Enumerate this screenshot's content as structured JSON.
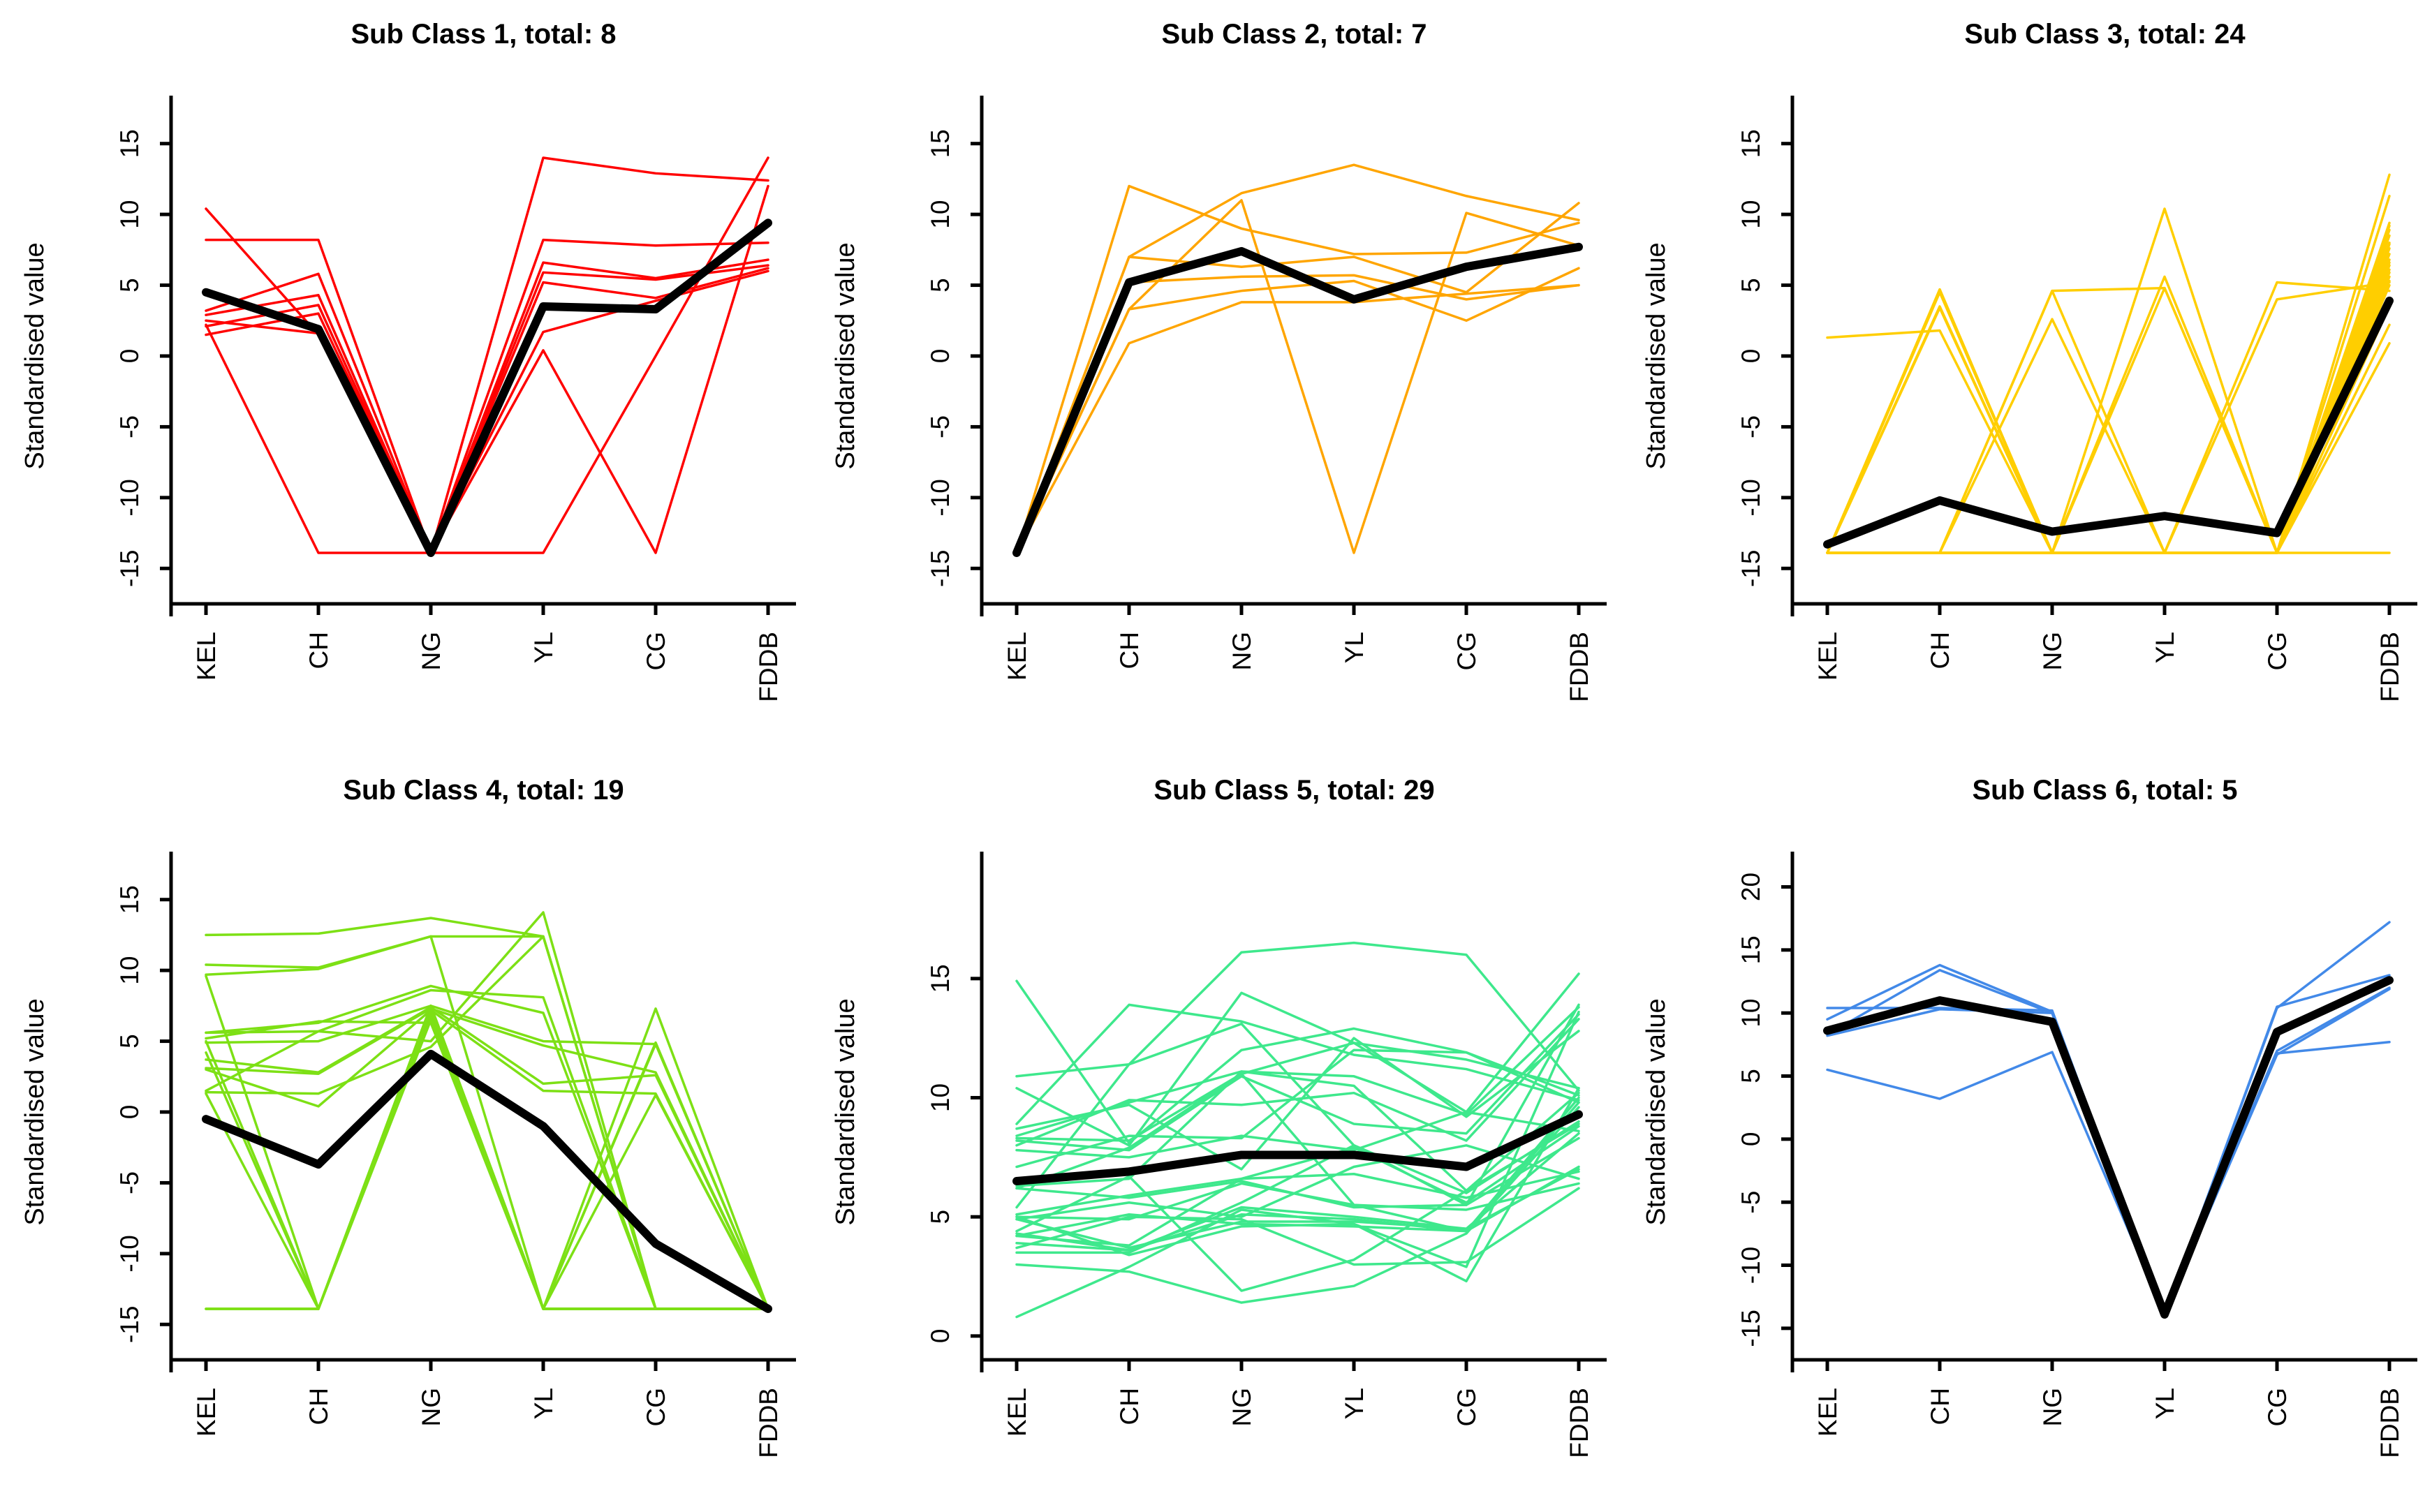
{
  "figure": {
    "y_axis_label": "Standardised value",
    "categories": [
      "KEL",
      "CH",
      "NG",
      "YL",
      "CG",
      "FDDB"
    ],
    "background_color": "#FFFFFF",
    "mean_line_color": "#000000"
  },
  "chart_data": [
    {
      "type": "line",
      "title": "Sub Class 1, total: 8",
      "color": "#FF0000",
      "categories": [
        "KEL",
        "CH",
        "NG",
        "YL",
        "CG",
        "FDDB"
      ],
      "ylabel": "Standardised value",
      "yticks": [
        -15,
        -10,
        -5,
        0,
        5,
        10,
        15
      ],
      "ylim": [
        -17.5,
        17.5
      ],
      "mean": [
        4.5,
        1.9,
        -13.9,
        3.5,
        3.3,
        9.4
      ],
      "members": [
        [
          10.4,
          1.5,
          -13.9,
          0.4,
          -13.9,
          12.0
        ],
        [
          8.2,
          8.2,
          -13.9,
          14.0,
          12.9,
          12.4
        ],
        [
          2.2,
          -13.9,
          -13.9,
          -13.9,
          0.0,
          14.0
        ],
        [
          3.2,
          5.8,
          -13.9,
          8.2,
          7.8,
          8.0
        ],
        [
          2.9,
          4.3,
          -13.9,
          6.6,
          5.5,
          6.8
        ],
        [
          2.1,
          3.6,
          -13.9,
          5.9,
          5.4,
          6.4
        ],
        [
          1.5,
          3.0,
          -13.9,
          5.2,
          4.1,
          6.2
        ],
        [
          2.5,
          1.6,
          -13.9,
          1.7,
          3.9,
          6.0
        ]
      ]
    },
    {
      "type": "line",
      "title": "Sub Class 2, total: 7",
      "color": "#FFA500",
      "categories": [
        "KEL",
        "CH",
        "NG",
        "YL",
        "CG",
        "FDDB"
      ],
      "ylabel": "Standardised value",
      "yticks": [
        -15,
        -10,
        -5,
        0,
        5,
        10,
        15
      ],
      "ylim": [
        -17.5,
        17.5
      ],
      "mean": [
        -13.9,
        5.2,
        7.4,
        4.0,
        6.3,
        7.7
      ],
      "members": [
        [
          -13.9,
          12.0,
          9.0,
          7.2,
          7.3,
          9.4
        ],
        [
          -13.9,
          7.0,
          11.5,
          13.5,
          11.3,
          9.6
        ],
        [
          -13.9,
          7.0,
          6.3,
          7.0,
          4.5,
          10.8
        ],
        [
          -13.9,
          5.2,
          5.6,
          5.7,
          4.0,
          5.0
        ],
        [
          -13.9,
          3.3,
          11.0,
          -13.9,
          10.1,
          7.8
        ],
        [
          -13.9,
          3.3,
          4.6,
          5.3,
          2.5,
          6.2
        ],
        [
          -13.9,
          0.9,
          3.8,
          3.8,
          4.4,
          5.0
        ]
      ]
    },
    {
      "type": "line",
      "title": "Sub Class 3, total: 24",
      "color": "#FFCE00",
      "categories": [
        "KEL",
        "CH",
        "NG",
        "YL",
        "CG",
        "FDDB"
      ],
      "ylabel": "Standardised value",
      "yticks": [
        -15,
        -10,
        -5,
        0,
        5,
        10,
        15
      ],
      "ylim": [
        -17.5,
        17.5
      ],
      "mean": [
        -13.3,
        -10.2,
        -12.4,
        -11.3,
        -12.5,
        3.9
      ],
      "members": [
        [
          1.3,
          1.8,
          -13.9,
          -13.9,
          -13.9,
          5.6
        ],
        [
          -13.9,
          4.7,
          -13.9,
          -13.9,
          -13.9,
          12.8
        ],
        [
          -13.9,
          4.7,
          -13.9,
          -13.9,
          -13.9,
          9.4
        ],
        [
          -13.9,
          4.6,
          -13.9,
          -13.9,
          -13.9,
          8.9
        ],
        [
          -13.9,
          3.5,
          -13.9,
          -13.9,
          -13.9,
          8.5
        ],
        [
          -13.9,
          3.4,
          -13.9,
          -13.9,
          -13.9,
          8.0
        ],
        [
          -13.9,
          4.5,
          -13.9,
          -13.9,
          -13.9,
          7.9
        ],
        [
          -13.9,
          -13.9,
          4.6,
          4.8,
          -13.9,
          7.6
        ],
        [
          -13.9,
          -13.9,
          4.6,
          -13.9,
          -13.9,
          7.2
        ],
        [
          -13.9,
          -13.9,
          2.6,
          -13.9,
          -13.9,
          6.8
        ],
        [
          -13.9,
          -13.9,
          -13.9,
          10.4,
          -13.9,
          6.4
        ],
        [
          -13.9,
          -13.9,
          -13.9,
          5.6,
          -13.9,
          6.1
        ],
        [
          -13.9,
          -13.9,
          -13.9,
          4.8,
          -13.9,
          11.3
        ],
        [
          -13.9,
          -13.9,
          -13.9,
          -13.9,
          5.2,
          4.6
        ],
        [
          -13.9,
          -13.9,
          -13.9,
          -13.9,
          4.0,
          5.2
        ],
        [
          -13.9,
          -13.9,
          -13.9,
          -13.9,
          -13.9,
          9.2
        ],
        [
          -13.9,
          -13.9,
          -13.9,
          -13.9,
          -13.9,
          6.6
        ],
        [
          -13.9,
          -13.9,
          -13.9,
          -13.9,
          -13.9,
          5.9
        ],
        [
          -13.9,
          -13.9,
          -13.9,
          -13.9,
          -13.9,
          5.3
        ],
        [
          -13.9,
          -13.9,
          -13.9,
          -13.9,
          -13.9,
          5.0
        ],
        [
          -13.9,
          -13.9,
          -13.9,
          -13.9,
          -13.9,
          3.5
        ],
        [
          -13.9,
          -13.9,
          -13.9,
          -13.9,
          -13.9,
          2.2
        ],
        [
          -13.9,
          -13.9,
          -13.9,
          -13.9,
          -13.9,
          0.9
        ],
        [
          -13.9,
          -13.9,
          -13.9,
          -13.9,
          -13.9,
          -13.9
        ]
      ]
    },
    {
      "type": "line",
      "title": "Sub Class 4, total: 19",
      "color": "#7DE015",
      "categories": [
        "KEL",
        "CH",
        "NG",
        "YL",
        "CG",
        "FDDB"
      ],
      "ylabel": "Standardised value",
      "yticks": [
        -15,
        -10,
        -5,
        0,
        5,
        10,
        15
      ],
      "ylim": [
        -17.5,
        17.5
      ],
      "mean": [
        -0.5,
        -3.7,
        4.1,
        -1.0,
        -9.3,
        -13.9
      ],
      "members": [
        [
          12.5,
          12.6,
          13.7,
          12.4,
          -13.9,
          -13.9
        ],
        [
          10.4,
          10.2,
          12.4,
          -13.9,
          -13.9,
          -13.9
        ],
        [
          9.7,
          10.1,
          12.4,
          12.4,
          -13.9,
          -13.9
        ],
        [
          5.6,
          6.3,
          8.9,
          7.0,
          -13.9,
          -13.9
        ],
        [
          5.6,
          5.7,
          8.6,
          8.1,
          -13.9,
          -13.9
        ],
        [
          5.2,
          6.4,
          6.3,
          -13.9,
          -13.9,
          -13.9
        ],
        [
          4.9,
          5.0,
          7.5,
          5.0,
          4.8,
          -13.9
        ],
        [
          3.7,
          2.8,
          7.4,
          2.0,
          2.6,
          -13.9
        ],
        [
          3.1,
          2.7,
          7.3,
          4.7,
          2.8,
          -13.9
        ],
        [
          3.0,
          0.4,
          7.2,
          1.5,
          1.3,
          -13.9
        ],
        [
          1.5,
          5.7,
          5.0,
          14.1,
          -13.9,
          -13.9
        ],
        [
          1.4,
          1.3,
          4.6,
          12.4,
          -13.9,
          -13.9
        ],
        [
          1.3,
          -13.9,
          7.5,
          -13.9,
          7.3,
          -13.9
        ],
        [
          -13.9,
          -13.9,
          7.4,
          -13.9,
          4.8,
          -13.9
        ],
        [
          -13.9,
          -13.9,
          7.0,
          -13.9,
          1.2,
          -13.9
        ],
        [
          -13.9,
          -13.9,
          6.7,
          -13.9,
          -13.9,
          -13.9
        ],
        [
          5.0,
          -13.9,
          6.5,
          -13.9,
          -13.9,
          -13.9
        ],
        [
          9.6,
          -13.9,
          7.5,
          -13.9,
          -13.9,
          -13.9
        ],
        [
          4.2,
          -13.9,
          7.2,
          -13.9,
          4.9,
          -13.9
        ]
      ]
    },
    {
      "type": "line",
      "title": "Sub Class 5, total: 29",
      "color": "#3EE88C",
      "categories": [
        "KEL",
        "CH",
        "NG",
        "YL",
        "CG",
        "FDDB"
      ],
      "ylabel": "Standardised value",
      "yticks": [
        0,
        5,
        10,
        15
      ],
      "ylim": [
        -1.0,
        19.8
      ],
      "mean": [
        6.5,
        6.9,
        7.6,
        7.6,
        7.1,
        9.3
      ],
      "members": [
        [
          14.9,
          8.1,
          12.0,
          12.9,
          11.9,
          9.8
        ],
        [
          10.9,
          11.4,
          16.1,
          16.5,
          16.0,
          10.3
        ],
        [
          10.4,
          8.0,
          14.4,
          12.3,
          9.4,
          8.6
        ],
        [
          8.9,
          13.9,
          13.2,
          11.8,
          11.2,
          9.9
        ],
        [
          8.4,
          9.8,
          11.1,
          10.9,
          9.3,
          13.8
        ],
        [
          8.3,
          8.2,
          11.0,
          12.3,
          11.6,
          10.4
        ],
        [
          8.2,
          7.8,
          10.9,
          8.9,
          8.5,
          13.5
        ],
        [
          8.0,
          9.9,
          9.7,
          10.2,
          8.2,
          13.3
        ],
        [
          7.8,
          7.5,
          8.4,
          7.8,
          9.4,
          15.2
        ],
        [
          7.1,
          8.4,
          8.3,
          12.0,
          11.9,
          10.1
        ],
        [
          6.3,
          6.6,
          11.1,
          10.5,
          6.1,
          8.9
        ],
        [
          6.2,
          5.8,
          6.5,
          5.4,
          5.5,
          13.9
        ],
        [
          5.4,
          11.4,
          13.1,
          8.0,
          6.0,
          9.0
        ],
        [
          5.1,
          5.9,
          6.6,
          7.9,
          5.6,
          8.8
        ],
        [
          5.0,
          4.9,
          6.4,
          5.5,
          4.4,
          7.1
        ],
        [
          4.9,
          3.7,
          4.8,
          4.8,
          4.5,
          8.5
        ],
        [
          4.9,
          5.6,
          5.0,
          7.1,
          8.0,
          6.6
        ],
        [
          4.3,
          3.6,
          5.1,
          4.9,
          4.4,
          10.0
        ],
        [
          4.2,
          3.8,
          6.6,
          6.8,
          5.8,
          6.9
        ],
        [
          4.2,
          5.1,
          4.7,
          4.6,
          4.4,
          9.8
        ],
        [
          3.9,
          3.6,
          5.4,
          5.0,
          4.5,
          7.0
        ],
        [
          3.7,
          5.0,
          4.9,
          3.0,
          3.1,
          6.2
        ],
        [
          3.5,
          3.5,
          5.6,
          8.0,
          5.5,
          8.3
        ],
        [
          3.0,
          2.7,
          1.4,
          2.1,
          4.3,
          9.6
        ],
        [
          0.8,
          2.9,
          5.3,
          4.7,
          2.3,
          10.4
        ],
        [
          6.2,
          7.9,
          11.0,
          5.5,
          5.3,
          6.4
        ],
        [
          8.7,
          9.7,
          7.0,
          12.5,
          9.2,
          12.8
        ],
        [
          5.0,
          3.4,
          4.6,
          4.7,
          2.9,
          13.6
        ],
        [
          4.4,
          6.7,
          1.9,
          3.2,
          6.1,
          10.2
        ]
      ]
    },
    {
      "type": "line",
      "title": "Sub Class 6, total: 5",
      "color": "#4289E8",
      "categories": [
        "KEL",
        "CH",
        "NG",
        "YL",
        "CG",
        "FDDB"
      ],
      "ylabel": "Standardised value",
      "yticks": [
        -15,
        -10,
        -5,
        0,
        5,
        10,
        15,
        20
      ],
      "ylim": [
        -17.5,
        21.8
      ],
      "mean": [
        8.6,
        11.0,
        9.3,
        -13.9,
        8.5,
        12.6
      ],
      "members": [
        [
          10.4,
          10.4,
          10.2,
          -13.9,
          10.4,
          17.2
        ],
        [
          9.5,
          13.8,
          10.1,
          -13.9,
          10.5,
          13.0
        ],
        [
          8.3,
          13.4,
          10.0,
          -13.9,
          7.0,
          12.0
        ],
        [
          8.2,
          10.3,
          10.0,
          -13.9,
          6.8,
          7.7
        ],
        [
          5.5,
          3.2,
          6.9,
          -13.9,
          6.7,
          11.9
        ]
      ]
    }
  ]
}
